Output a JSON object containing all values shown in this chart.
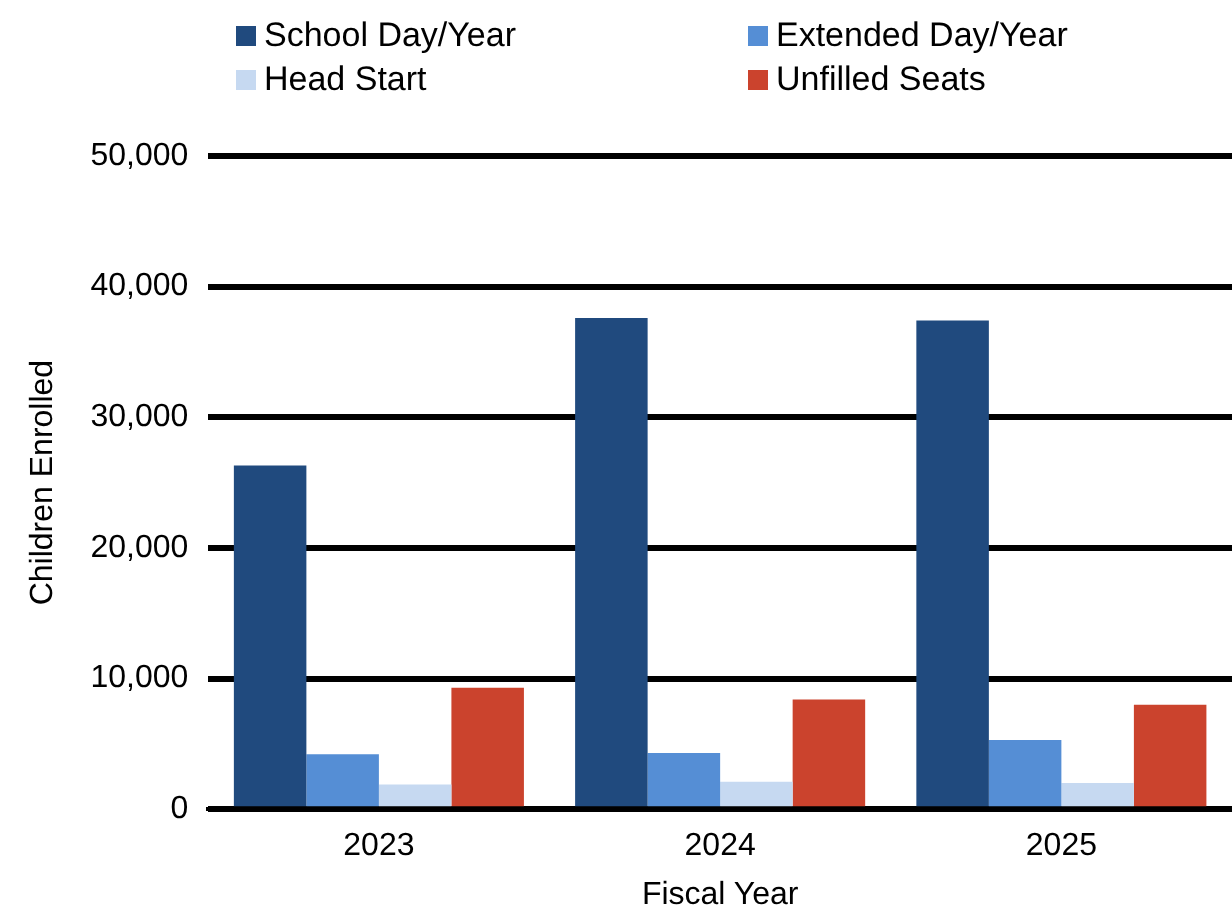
{
  "chart_data": {
    "type": "bar",
    "categories": [
      "2023",
      "2024",
      "2025"
    ],
    "xlabel": "Fiscal Year",
    "ylabel": "Children Enrolled",
    "series": [
      {
        "name": "School Day/Year",
        "color": "#204a7e",
        "values": [
          26300,
          37600,
          37400
        ]
      },
      {
        "name": "Extended Day/Year",
        "color": "#558ed5",
        "values": [
          4200,
          4300,
          5300
        ]
      },
      {
        "name": "Head Start",
        "color": "#c6d9f1",
        "values": [
          1900,
          2100,
          2000
        ]
      },
      {
        "name": "Unfilled Seats",
        "color": "#cb432d",
        "values": [
          9300,
          8400,
          8000
        ]
      }
    ],
    "ylim": [
      0,
      50000
    ],
    "yticks": [
      0,
      {
        "value": 10000,
        "label": "10,000"
      },
      {
        "value": 20000,
        "label": "20,000"
      },
      {
        "value": 30000,
        "label": "30,000"
      },
      {
        "value": 40000,
        "label": "40,000"
      },
      {
        "value": 50000,
        "label": "50,000"
      }
    ],
    "grid": "y",
    "legend": "top"
  }
}
